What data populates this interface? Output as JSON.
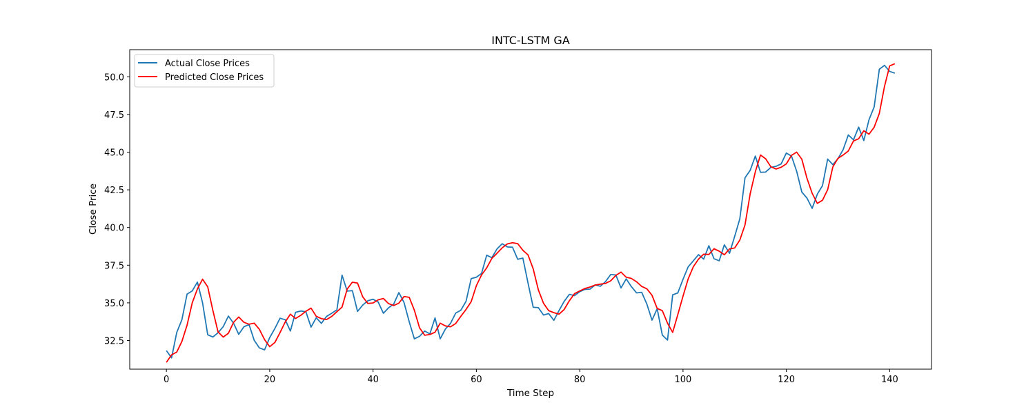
{
  "chart_data": {
    "type": "line",
    "title": "INTC-LSTM GA",
    "xlabel": "Time Step",
    "ylabel": "Close Price",
    "xlim": [
      -7.1,
      148.1
    ],
    "ylim": [
      30.6,
      51.8
    ],
    "xticks": [
      0,
      20,
      40,
      60,
      80,
      100,
      120,
      140
    ],
    "yticks": [
      32.5,
      35.0,
      37.5,
      40.0,
      42.5,
      45.0,
      47.5,
      50.0
    ],
    "ytick_labels": [
      "32.5",
      "35.0",
      "37.5",
      "40.0",
      "42.5",
      "45.0",
      "47.5",
      "50.0"
    ],
    "grid": false,
    "legend_position": "upper left",
    "series": [
      {
        "name": "Actual Close Prices",
        "color": "#1f77b4",
        "values": [
          31.83,
          31.35,
          33.03,
          33.88,
          35.58,
          35.79,
          36.38,
          35.0,
          32.88,
          32.73,
          33.02,
          33.42,
          34.12,
          33.65,
          32.91,
          33.41,
          33.56,
          32.51,
          32.01,
          31.88,
          32.7,
          33.3,
          33.98,
          33.88,
          33.13,
          34.37,
          34.46,
          34.41,
          33.39,
          34.01,
          33.64,
          34.1,
          34.31,
          34.53,
          36.84,
          35.78,
          35.81,
          34.43,
          34.85,
          35.14,
          35.24,
          35.05,
          34.31,
          34.67,
          34.92,
          35.68,
          35.02,
          33.75,
          32.61,
          32.78,
          33.13,
          32.94,
          34.0,
          32.61,
          33.26,
          33.64,
          34.32,
          34.51,
          35.1,
          36.61,
          36.7,
          36.95,
          38.16,
          38.0,
          38.58,
          38.92,
          38.71,
          38.69,
          37.89,
          37.97,
          36.31,
          34.71,
          34.68,
          34.19,
          34.29,
          33.84,
          34.49,
          35.1,
          35.56,
          35.48,
          35.74,
          35.89,
          35.91,
          36.19,
          36.1,
          36.41,
          36.88,
          36.85,
          35.99,
          36.59,
          36.08,
          35.66,
          35.7,
          34.92,
          33.85,
          34.61,
          32.86,
          32.53,
          35.53,
          35.66,
          36.56,
          37.39,
          37.79,
          38.2,
          37.9,
          38.79,
          37.93,
          37.79,
          38.85,
          38.29,
          39.41,
          40.58,
          43.3,
          43.79,
          44.74,
          43.66,
          43.68,
          43.99,
          44.06,
          44.22,
          44.94,
          44.74,
          43.73,
          42.35,
          41.95,
          41.27,
          42.21,
          42.78,
          44.54,
          44.17,
          44.57,
          45.17,
          46.14,
          45.82,
          46.66,
          45.77,
          47.15,
          48.0,
          50.5,
          50.76,
          50.36,
          50.24
        ]
      },
      {
        "name": "Predicted Close Prices",
        "color": "#ff0000",
        "values": [
          31.05,
          31.55,
          31.73,
          32.44,
          33.52,
          35.0,
          35.92,
          36.57,
          36.06,
          34.49,
          33.07,
          32.73,
          32.98,
          33.71,
          34.06,
          33.71,
          33.58,
          33.65,
          33.24,
          32.56,
          32.09,
          32.37,
          33.03,
          33.73,
          34.25,
          33.96,
          34.17,
          34.44,
          34.65,
          34.11,
          33.95,
          33.89,
          34.1,
          34.41,
          34.72,
          35.92,
          36.37,
          36.31,
          35.4,
          34.96,
          34.99,
          35.2,
          35.29,
          34.95,
          34.82,
          34.98,
          35.42,
          35.37,
          34.51,
          33.34,
          32.85,
          32.9,
          33.05,
          33.65,
          33.47,
          33.41,
          33.63,
          34.11,
          34.56,
          35.08,
          36.14,
          36.85,
          37.32,
          37.95,
          38.29,
          38.65,
          38.91,
          38.99,
          38.93,
          38.49,
          38.18,
          37.26,
          35.86,
          34.97,
          34.48,
          34.35,
          34.25,
          34.56,
          35.14,
          35.61,
          35.79,
          35.95,
          36.05,
          36.18,
          36.24,
          36.29,
          36.46,
          36.82,
          37.04,
          36.7,
          36.62,
          36.4,
          36.09,
          35.93,
          35.5,
          34.63,
          34.48,
          33.65,
          33.04,
          34.23,
          35.44,
          36.59,
          37.4,
          37.9,
          38.23,
          38.21,
          38.59,
          38.43,
          38.19,
          38.58,
          38.64,
          39.17,
          40.17,
          42.23,
          43.7,
          44.81,
          44.56,
          44.03,
          43.88,
          44.0,
          44.22,
          44.79,
          45.0,
          44.53,
          43.26,
          42.27,
          41.6,
          41.81,
          42.51,
          44.02,
          44.59,
          44.81,
          45.08,
          45.74,
          45.89,
          46.42,
          46.19,
          46.65,
          47.57,
          49.36,
          50.72,
          50.87
        ]
      }
    ]
  }
}
